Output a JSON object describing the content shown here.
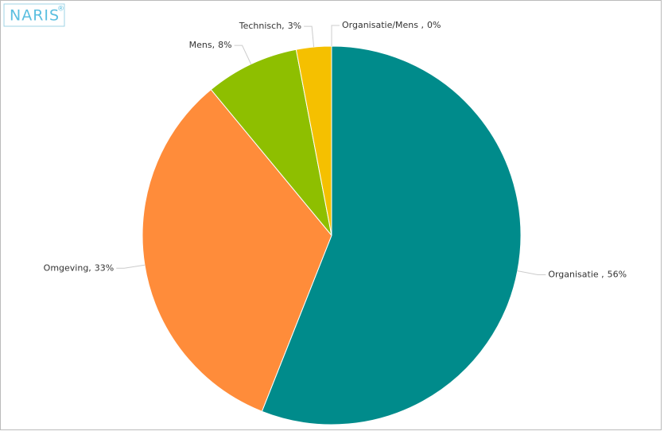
{
  "logo": {
    "text": "NARIS",
    "mark": "®"
  },
  "chart_data": {
    "type": "pie",
    "categories": [
      "Organisatie ,",
      "Omgeving,",
      "Mens,",
      "Technisch,",
      "Organisatie/Mens ,"
    ],
    "values": [
      56,
      33,
      8,
      3,
      0
    ],
    "value_labels": [
      "56%",
      "33%",
      "8%",
      "3%",
      "0%"
    ],
    "colors": [
      "#008b8b",
      "#ff8c3a",
      "#8ebf00",
      "#f5c000",
      "#e05050"
    ]
  }
}
